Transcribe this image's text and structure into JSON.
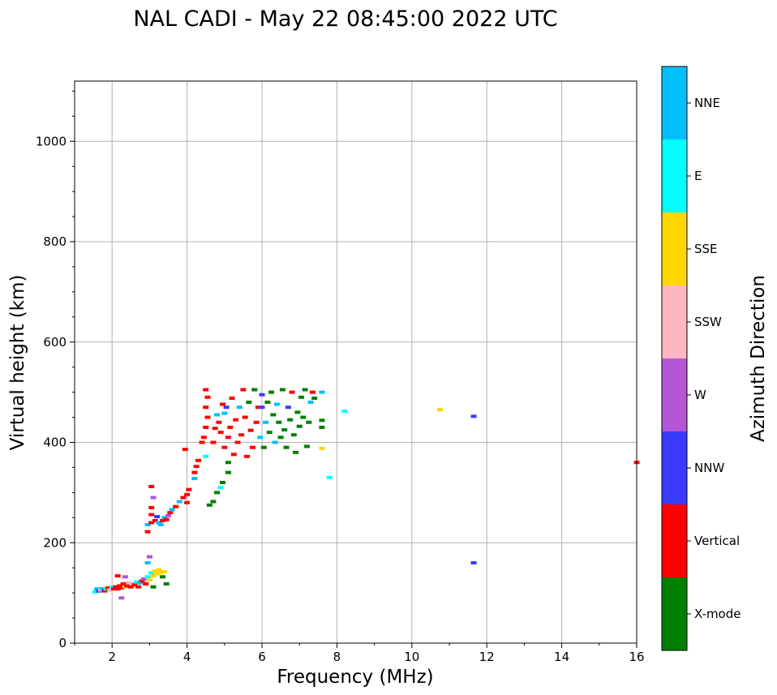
{
  "chart_data": {
    "type": "scatter",
    "title": "NAL CADI - May 22 08:45:00 2022 UTC",
    "xlabel": "Frequency (MHz)",
    "ylabel": "Virtual height (km)",
    "xlim": [
      1,
      16
    ],
    "ylim": [
      0,
      1120
    ],
    "xticks": [
      2,
      4,
      6,
      8,
      10,
      12,
      14,
      16
    ],
    "yticks": [
      0,
      200,
      400,
      600,
      800,
      1000
    ],
    "grid": true,
    "colorbar": {
      "title": "Azimuth Direction",
      "categories": [
        {
          "name": "X-mode",
          "color": "#008000"
        },
        {
          "name": "Vertical",
          "color": "#ff0000"
        },
        {
          "name": "NNW",
          "color": "#3a3aff"
        },
        {
          "name": "W",
          "color": "#b456d6"
        },
        {
          "name": "SSW",
          "color": "#ffb6c1"
        },
        {
          "name": "SSE",
          "color": "#ffd700"
        },
        {
          "name": "E",
          "color": "#00ffff"
        },
        {
          "name": "NNE",
          "color": "#00bfff"
        }
      ]
    },
    "points": [
      {
        "f": 1.55,
        "h": 102,
        "c": "E"
      },
      {
        "f": 1.6,
        "h": 108,
        "c": "NNE"
      },
      {
        "f": 1.65,
        "h": 104,
        "c": "NNW"
      },
      {
        "f": 1.7,
        "h": 106,
        "c": "SSW"
      },
      {
        "f": 1.75,
        "h": 108,
        "c": "NNE"
      },
      {
        "f": 1.8,
        "h": 104,
        "c": "Vertical"
      },
      {
        "f": 1.85,
        "h": 108,
        "c": "E"
      },
      {
        "f": 1.9,
        "h": 110,
        "c": "Vertical"
      },
      {
        "f": 1.95,
        "h": 106,
        "c": "SSW"
      },
      {
        "f": 2.0,
        "h": 112,
        "c": "E"
      },
      {
        "f": 2.05,
        "h": 108,
        "c": "Vertical"
      },
      {
        "f": 2.1,
        "h": 112,
        "c": "Vertical"
      },
      {
        "f": 2.15,
        "h": 108,
        "c": "Vertical"
      },
      {
        "f": 2.2,
        "h": 114,
        "c": "Vertical"
      },
      {
        "f": 2.25,
        "h": 110,
        "c": "Vertical"
      },
      {
        "f": 2.3,
        "h": 118,
        "c": "Vertical"
      },
      {
        "f": 2.35,
        "h": 112,
        "c": "SSE"
      },
      {
        "f": 2.4,
        "h": 114,
        "c": "Vertical"
      },
      {
        "f": 2.45,
        "h": 120,
        "c": "SSW"
      },
      {
        "f": 2.5,
        "h": 112,
        "c": "Vertical"
      },
      {
        "f": 2.55,
        "h": 118,
        "c": "SSW"
      },
      {
        "f": 2.6,
        "h": 116,
        "c": "Vertical"
      },
      {
        "f": 2.65,
        "h": 122,
        "c": "E"
      },
      {
        "f": 2.7,
        "h": 112,
        "c": "Vertical"
      },
      {
        "f": 2.75,
        "h": 120,
        "c": "NNE"
      },
      {
        "f": 2.8,
        "h": 124,
        "c": "Vertical"
      },
      {
        "f": 2.85,
        "h": 128,
        "c": "W"
      },
      {
        "f": 2.9,
        "h": 118,
        "c": "Vertical"
      },
      {
        "f": 2.95,
        "h": 132,
        "c": "E"
      },
      {
        "f": 3.0,
        "h": 126,
        "c": "SSE"
      },
      {
        "f": 3.05,
        "h": 140,
        "c": "E"
      },
      {
        "f": 3.1,
        "h": 134,
        "c": "SSE"
      },
      {
        "f": 3.15,
        "h": 144,
        "c": "SSE"
      },
      {
        "f": 3.2,
        "h": 138,
        "c": "SSE"
      },
      {
        "f": 3.25,
        "h": 146,
        "c": "SSE"
      },
      {
        "f": 3.3,
        "h": 140,
        "c": "SSE"
      },
      {
        "f": 3.35,
        "h": 132,
        "c": "X-mode"
      },
      {
        "f": 3.4,
        "h": 142,
        "c": "SSE"
      },
      {
        "f": 3.45,
        "h": 118,
        "c": "X-mode"
      },
      {
        "f": 3.1,
        "h": 112,
        "c": "X-mode"
      },
      {
        "f": 2.15,
        "h": 134,
        "c": "Vertical"
      },
      {
        "f": 2.25,
        "h": 90,
        "c": "W"
      },
      {
        "f": 2.35,
        "h": 132,
        "c": "W"
      },
      {
        "f": 2.95,
        "h": 160,
        "c": "NNE"
      },
      {
        "f": 3.0,
        "h": 172,
        "c": "W"
      },
      {
        "f": 2.95,
        "h": 222,
        "c": "Vertical"
      },
      {
        "f": 2.95,
        "h": 236,
        "c": "NNE"
      },
      {
        "f": 3.05,
        "h": 240,
        "c": "Vertical"
      },
      {
        "f": 3.05,
        "h": 256,
        "c": "Vertical"
      },
      {
        "f": 3.05,
        "h": 270,
        "c": "Vertical"
      },
      {
        "f": 3.1,
        "h": 290,
        "c": "W"
      },
      {
        "f": 3.05,
        "h": 312,
        "c": "Vertical"
      },
      {
        "f": 3.15,
        "h": 244,
        "c": "Vertical"
      },
      {
        "f": 3.2,
        "h": 252,
        "c": "NNW"
      },
      {
        "f": 3.25,
        "h": 240,
        "c": "NNE"
      },
      {
        "f": 3.3,
        "h": 236,
        "c": "NNE"
      },
      {
        "f": 3.35,
        "h": 244,
        "c": "Vertical"
      },
      {
        "f": 3.4,
        "h": 250,
        "c": "NNE"
      },
      {
        "f": 3.45,
        "h": 246,
        "c": "Vertical"
      },
      {
        "f": 3.5,
        "h": 254,
        "c": "W"
      },
      {
        "f": 3.55,
        "h": 260,
        "c": "Vertical"
      },
      {
        "f": 3.6,
        "h": 266,
        "c": "NNE"
      },
      {
        "f": 3.7,
        "h": 272,
        "c": "Vertical"
      },
      {
        "f": 3.8,
        "h": 282,
        "c": "NNE"
      },
      {
        "f": 3.9,
        "h": 290,
        "c": "Vertical"
      },
      {
        "f": 4.0,
        "h": 296,
        "c": "Vertical"
      },
      {
        "f": 4.05,
        "h": 306,
        "c": "Vertical"
      },
      {
        "f": 4.0,
        "h": 280,
        "c": "Vertical"
      },
      {
        "f": 3.95,
        "h": 386,
        "c": "Vertical"
      },
      {
        "f": 4.2,
        "h": 328,
        "c": "NNE"
      },
      {
        "f": 4.2,
        "h": 340,
        "c": "Vertical"
      },
      {
        "f": 4.25,
        "h": 352,
        "c": "Vertical"
      },
      {
        "f": 4.3,
        "h": 364,
        "c": "Vertical"
      },
      {
        "f": 4.4,
        "h": 400,
        "c": "Vertical"
      },
      {
        "f": 4.45,
        "h": 410,
        "c": "Vertical"
      },
      {
        "f": 4.5,
        "h": 430,
        "c": "Vertical"
      },
      {
        "f": 4.55,
        "h": 450,
        "c": "Vertical"
      },
      {
        "f": 4.5,
        "h": 470,
        "c": "Vertical"
      },
      {
        "f": 4.55,
        "h": 490,
        "c": "Vertical"
      },
      {
        "f": 4.5,
        "h": 505,
        "c": "Vertical"
      },
      {
        "f": 4.5,
        "h": 372,
        "c": "E"
      },
      {
        "f": 4.6,
        "h": 275,
        "c": "X-mode"
      },
      {
        "f": 4.7,
        "h": 282,
        "c": "X-mode"
      },
      {
        "f": 4.8,
        "h": 300,
        "c": "X-mode"
      },
      {
        "f": 4.9,
        "h": 310,
        "c": "E"
      },
      {
        "f": 4.95,
        "h": 320,
        "c": "X-mode"
      },
      {
        "f": 5.1,
        "h": 340,
        "c": "X-mode"
      },
      {
        "f": 5.1,
        "h": 360,
        "c": "X-mode"
      },
      {
        "f": 4.7,
        "h": 400,
        "c": "Vertical"
      },
      {
        "f": 4.75,
        "h": 428,
        "c": "Vertical"
      },
      {
        "f": 4.8,
        "h": 455,
        "c": "NNE"
      },
      {
        "f": 4.85,
        "h": 440,
        "c": "Vertical"
      },
      {
        "f": 4.9,
        "h": 420,
        "c": "Vertical"
      },
      {
        "f": 4.95,
        "h": 476,
        "c": "Vertical"
      },
      {
        "f": 5.0,
        "h": 390,
        "c": "Vertical"
      },
      {
        "f": 5.0,
        "h": 458,
        "c": "NNE"
      },
      {
        "f": 5.05,
        "h": 470,
        "c": "NNW"
      },
      {
        "f": 5.1,
        "h": 410,
        "c": "Vertical"
      },
      {
        "f": 5.15,
        "h": 430,
        "c": "Vertical"
      },
      {
        "f": 5.2,
        "h": 488,
        "c": "Vertical"
      },
      {
        "f": 5.25,
        "h": 376,
        "c": "Vertical"
      },
      {
        "f": 5.3,
        "h": 445,
        "c": "Vertical"
      },
      {
        "f": 5.35,
        "h": 400,
        "c": "Vertical"
      },
      {
        "f": 5.4,
        "h": 470,
        "c": "NNE"
      },
      {
        "f": 5.45,
        "h": 415,
        "c": "Vertical"
      },
      {
        "f": 5.5,
        "h": 505,
        "c": "Vertical"
      },
      {
        "f": 5.55,
        "h": 450,
        "c": "Vertical"
      },
      {
        "f": 5.6,
        "h": 372,
        "c": "Vertical"
      },
      {
        "f": 5.65,
        "h": 480,
        "c": "X-mode"
      },
      {
        "f": 5.7,
        "h": 424,
        "c": "Vertical"
      },
      {
        "f": 5.75,
        "h": 390,
        "c": "Vertical"
      },
      {
        "f": 5.8,
        "h": 505,
        "c": "X-mode"
      },
      {
        "f": 5.85,
        "h": 440,
        "c": "Vertical"
      },
      {
        "f": 5.9,
        "h": 470,
        "c": "Vertical"
      },
      {
        "f": 5.95,
        "h": 410,
        "c": "NNE"
      },
      {
        "f": 6.0,
        "h": 495,
        "c": "NNW"
      },
      {
        "f": 6.0,
        "h": 470,
        "c": "NNW"
      },
      {
        "f": 6.05,
        "h": 390,
        "c": "X-mode"
      },
      {
        "f": 6.1,
        "h": 440,
        "c": "NNE"
      },
      {
        "f": 6.15,
        "h": 480,
        "c": "X-mode"
      },
      {
        "f": 6.2,
        "h": 420,
        "c": "X-mode"
      },
      {
        "f": 6.25,
        "h": 500,
        "c": "X-mode"
      },
      {
        "f": 6.3,
        "h": 455,
        "c": "X-mode"
      },
      {
        "f": 6.35,
        "h": 400,
        "c": "NNE"
      },
      {
        "f": 6.4,
        "h": 476,
        "c": "NNE"
      },
      {
        "f": 6.45,
        "h": 440,
        "c": "X-mode"
      },
      {
        "f": 6.5,
        "h": 410,
        "c": "X-mode"
      },
      {
        "f": 6.55,
        "h": 505,
        "c": "X-mode"
      },
      {
        "f": 6.6,
        "h": 425,
        "c": "X-mode"
      },
      {
        "f": 6.65,
        "h": 390,
        "c": "X-mode"
      },
      {
        "f": 6.7,
        "h": 470,
        "c": "NNW"
      },
      {
        "f": 6.75,
        "h": 445,
        "c": "X-mode"
      },
      {
        "f": 6.8,
        "h": 500,
        "c": "Vertical"
      },
      {
        "f": 6.85,
        "h": 415,
        "c": "X-mode"
      },
      {
        "f": 6.9,
        "h": 380,
        "c": "X-mode"
      },
      {
        "f": 6.95,
        "h": 460,
        "c": "X-mode"
      },
      {
        "f": 7.0,
        "h": 432,
        "c": "X-mode"
      },
      {
        "f": 7.05,
        "h": 490,
        "c": "X-mode"
      },
      {
        "f": 7.1,
        "h": 450,
        "c": "X-mode"
      },
      {
        "f": 7.15,
        "h": 505,
        "c": "X-mode"
      },
      {
        "f": 7.2,
        "h": 392,
        "c": "X-mode"
      },
      {
        "f": 7.25,
        "h": 440,
        "c": "X-mode"
      },
      {
        "f": 7.3,
        "h": 480,
        "c": "NNE"
      },
      {
        "f": 7.35,
        "h": 500,
        "c": "Vertical"
      },
      {
        "f": 7.4,
        "h": 488,
        "c": "X-mode"
      },
      {
        "f": 7.6,
        "h": 444,
        "c": "X-mode"
      },
      {
        "f": 7.6,
        "h": 430,
        "c": "X-mode"
      },
      {
        "f": 7.6,
        "h": 500,
        "c": "NNE"
      },
      {
        "f": 7.6,
        "h": 388,
        "c": "SSE"
      },
      {
        "f": 7.8,
        "h": 330,
        "c": "E"
      },
      {
        "f": 8.2,
        "h": 462,
        "c": "E"
      },
      {
        "f": 10.75,
        "h": 465,
        "c": "SSE"
      },
      {
        "f": 11.65,
        "h": 452,
        "c": "NNW"
      },
      {
        "f": 11.65,
        "h": 160,
        "c": "NNW"
      },
      {
        "f": 16.0,
        "h": 360,
        "c": "Vertical"
      }
    ]
  }
}
